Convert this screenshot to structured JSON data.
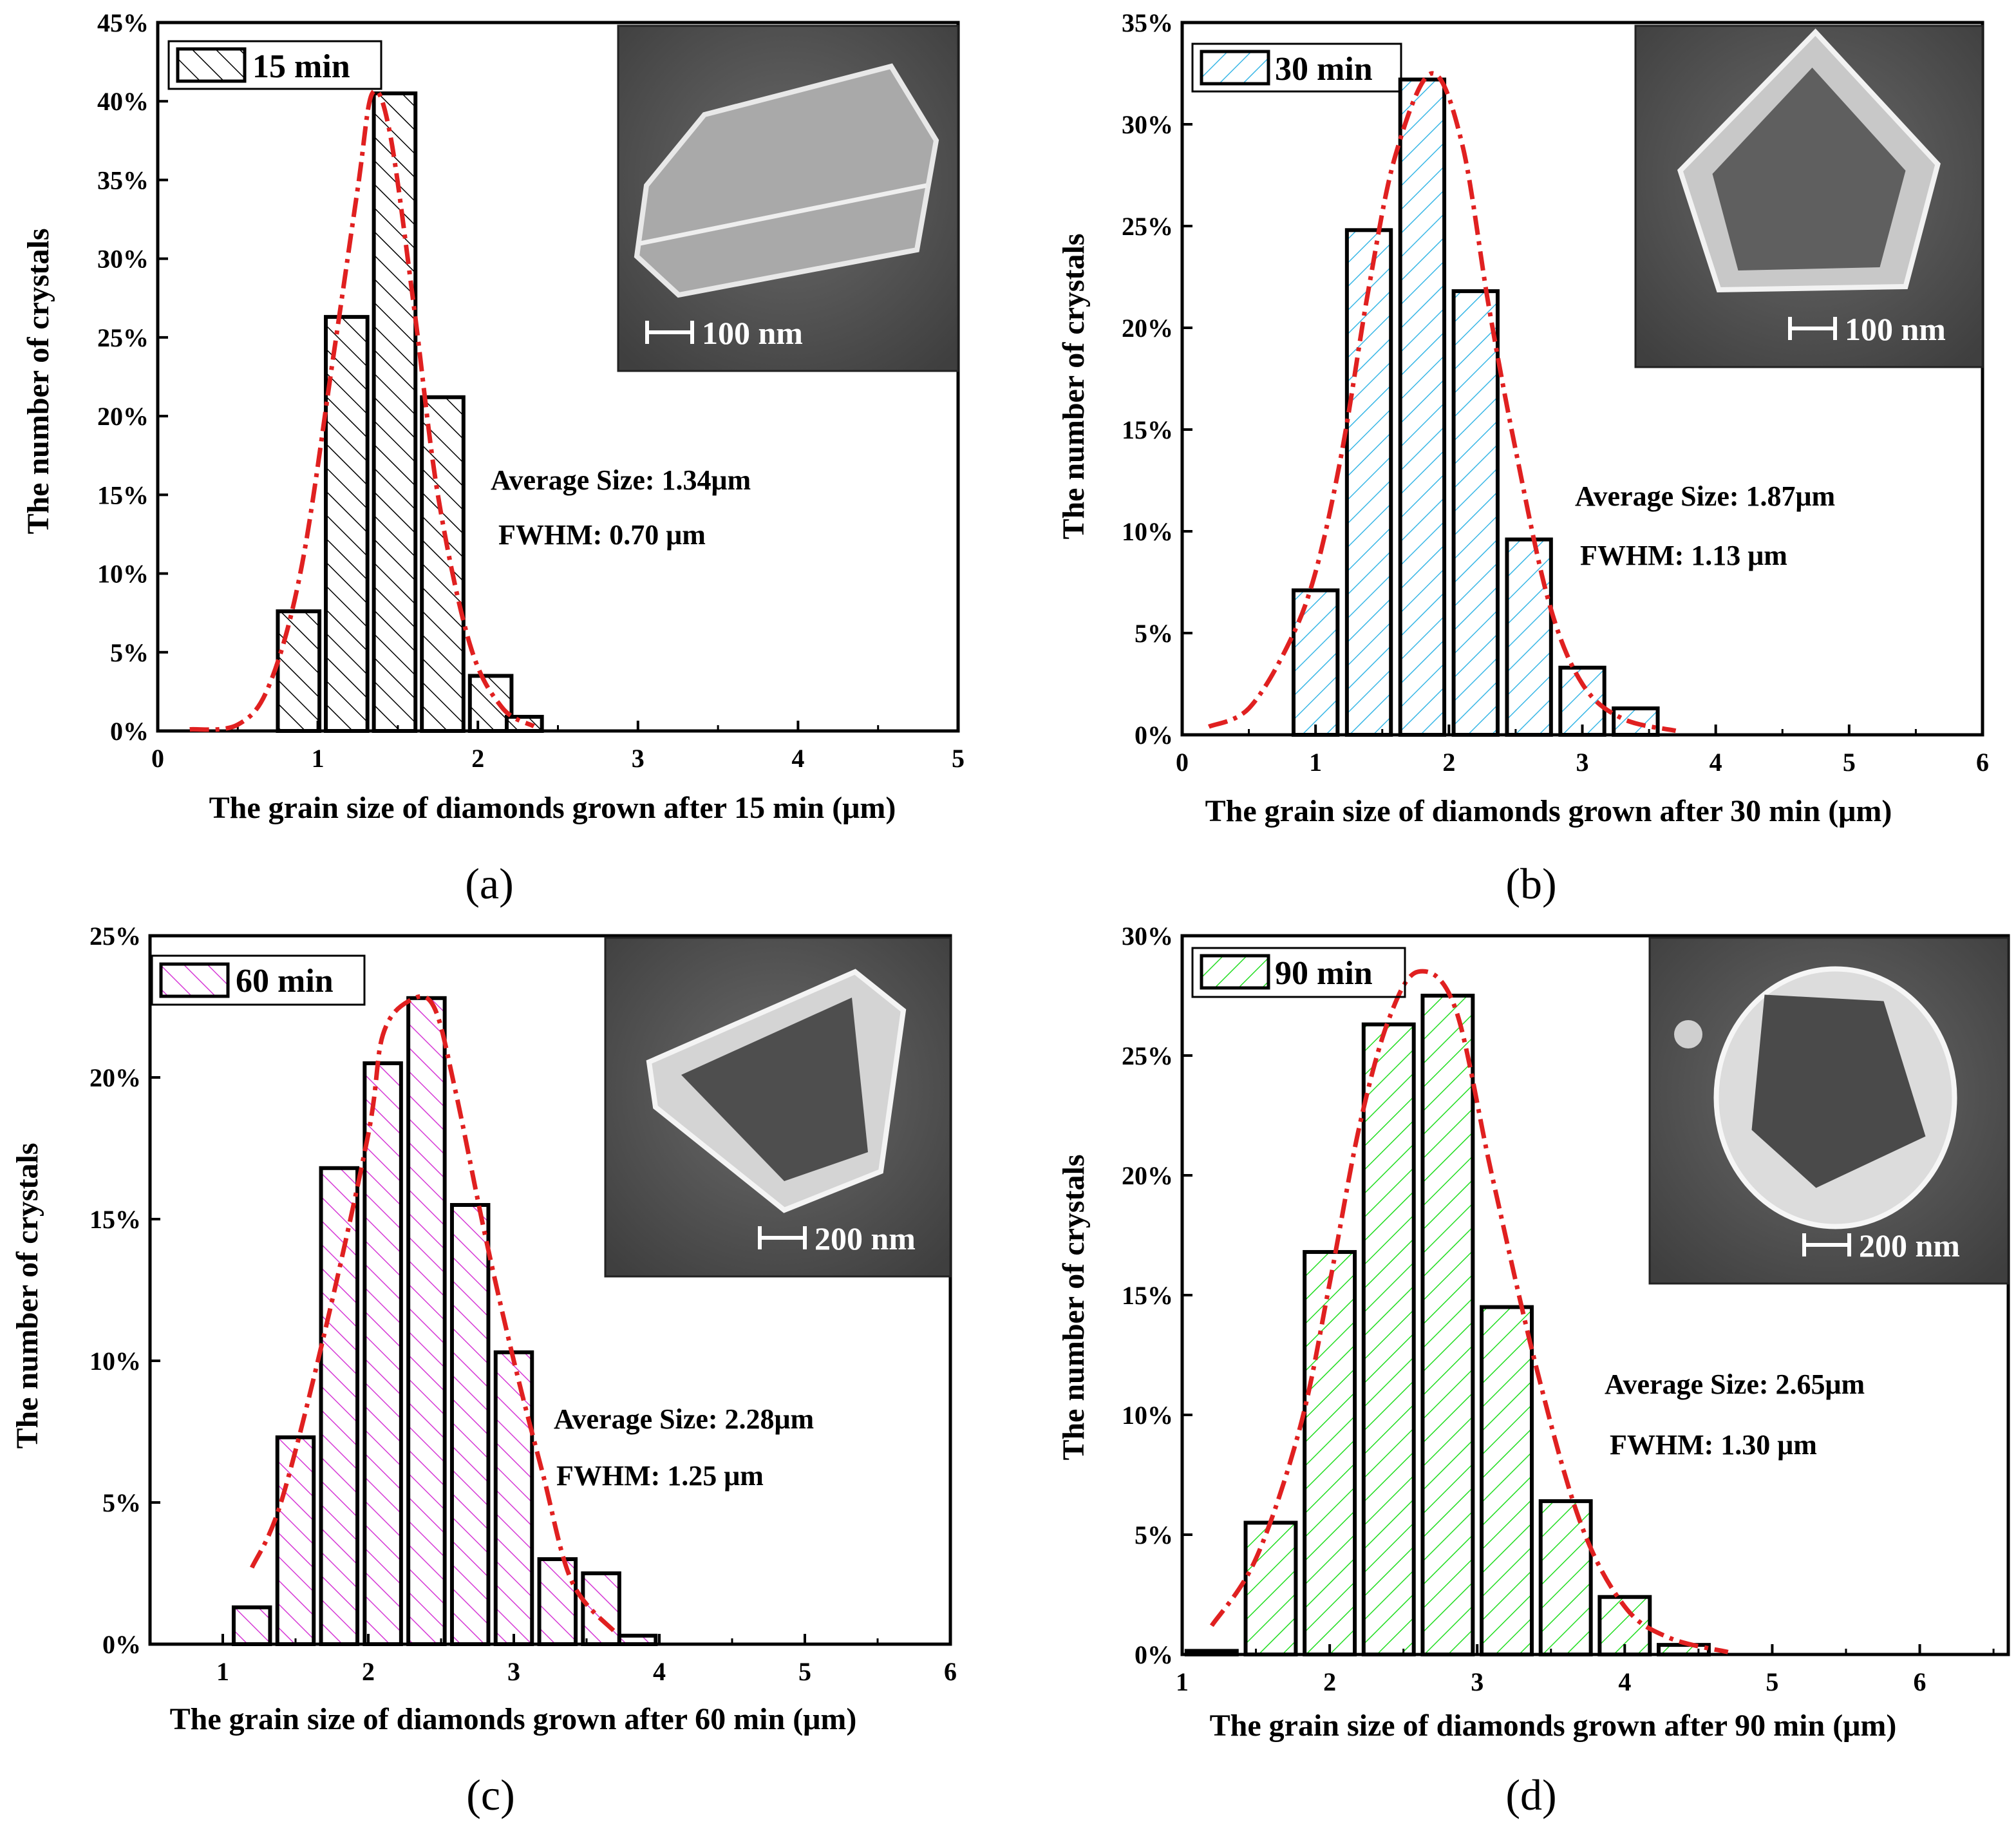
{
  "chart_data": [
    {
      "type": "bar",
      "panel_label": "(a)",
      "legend": "15 min",
      "hatch_color": "#000000",
      "xlabel": "The grain size of diamonds grown after 15 min (μm)",
      "ylabel": "The number of crystals",
      "xlim": [
        0,
        5
      ],
      "ylim": [
        0,
        45
      ],
      "xticks": [
        "0",
        "1",
        "2",
        "3",
        "4",
        "5"
      ],
      "yticks": [
        "0%",
        "5%",
        "10%",
        "15%",
        "20%",
        "25%",
        "30%",
        "35%",
        "40%",
        "45%"
      ],
      "bar_width": 0.26,
      "categories": [
        0.88,
        1.18,
        1.48,
        1.78,
        2.08
      ],
      "values": [
        7.6,
        26.3,
        40.5,
        21.2,
        3.5
      ],
      "extra_bars": [
        {
          "x": 2.29,
          "value": 0.9,
          "width": 0.22
        }
      ],
      "fit_curve": [
        [
          0.2,
          0.1
        ],
        [
          0.5,
          0.4
        ],
        [
          0.7,
          3
        ],
        [
          0.9,
          10.5
        ],
        [
          1.1,
          24
        ],
        [
          1.25,
          34.5
        ],
        [
          1.34,
          40.5
        ],
        [
          1.45,
          38
        ],
        [
          1.6,
          27
        ],
        [
          1.75,
          15
        ],
        [
          1.95,
          5.5
        ],
        [
          2.15,
          1.5
        ],
        [
          2.35,
          0.3
        ]
      ],
      "stats": {
        "average": "Average Size: 1.34μm",
        "fwhm": "FWHM: 0.70 μm"
      },
      "inset": {
        "scale_bar": "100 nm",
        "shape": "prism"
      }
    },
    {
      "type": "bar",
      "panel_label": "(b)",
      "legend": "30 min",
      "hatch_color": "#39b7e6",
      "xlabel": "The grain size of diamonds grown after 30 min (μm)",
      "ylabel": "The number of crystals",
      "xlim": [
        0,
        6
      ],
      "ylim": [
        0,
        35
      ],
      "xticks": [
        "0",
        "1",
        "2",
        "3",
        "4",
        "5",
        "6"
      ],
      "yticks": [
        "0%",
        "5%",
        "10%",
        "15%",
        "20%",
        "25%",
        "30%",
        "35%"
      ],
      "bar_width": 0.33,
      "categories": [
        1.0,
        1.4,
        1.8,
        2.2,
        2.6,
        3.0,
        3.4
      ],
      "values": [
        7.1,
        24.8,
        32.2,
        21.8,
        9.6,
        3.3,
        1.3
      ],
      "extra_bars": [],
      "fit_curve": [
        [
          0.2,
          0.4
        ],
        [
          0.5,
          1.3
        ],
        [
          0.8,
          4.5
        ],
        [
          1.0,
          8
        ],
        [
          1.2,
          14
        ],
        [
          1.4,
          22
        ],
        [
          1.6,
          28.5
        ],
        [
          1.87,
          32.5
        ],
        [
          2.1,
          29
        ],
        [
          2.3,
          21
        ],
        [
          2.5,
          14
        ],
        [
          2.75,
          6.5
        ],
        [
          3.0,
          2.5
        ],
        [
          3.3,
          0.8
        ],
        [
          3.7,
          0.2
        ]
      ],
      "stats": {
        "average": "Average Size: 1.87μm",
        "fwhm": "FWHM: 1.13 μm"
      },
      "inset": {
        "scale_bar": "100 nm",
        "shape": "tri-round"
      }
    },
    {
      "type": "bar",
      "panel_label": "(c)",
      "legend": "60 min",
      "hatch_color": "#d63ad6",
      "xlabel": "The grain size of diamonds grown after 60 min (μm)",
      "ylabel": "The number of crystals",
      "xlim": [
        0.5,
        6
      ],
      "ylim": [
        0,
        25
      ],
      "xticks": [
        "1",
        "2",
        "3",
        "4",
        "5",
        "6"
      ],
      "xtick_values": [
        1,
        2,
        3,
        4,
        5,
        6
      ],
      "yticks": [
        "0%",
        "5%",
        "10%",
        "15%",
        "20%",
        "25%"
      ],
      "bar_width": 0.25,
      "categories": [
        1.2,
        1.5,
        1.8,
        2.1,
        2.4,
        2.7,
        3.0,
        3.3,
        3.6,
        3.85
      ],
      "values": [
        1.3,
        7.3,
        16.8,
        20.5,
        22.8,
        15.5,
        10.3,
        3.0,
        2.5,
        0.3
      ],
      "fit_curve": [
        [
          1.2,
          2.7
        ],
        [
          1.4,
          5
        ],
        [
          1.7,
          11
        ],
        [
          2.0,
          18
        ],
        [
          2.1,
          21.5
        ],
        [
          2.28,
          22.7
        ],
        [
          2.45,
          22.5
        ],
        [
          2.6,
          19.5
        ],
        [
          2.8,
          14.5
        ],
        [
          3.0,
          10
        ],
        [
          3.2,
          6
        ],
        [
          3.4,
          2.2
        ],
        [
          3.7,
          0.4
        ]
      ],
      "stats": {
        "average": "Average Size: 2.28μm",
        "fwhm": "FWHM: 1.25 μm"
      },
      "inset": {
        "scale_bar": "200 nm",
        "shape": "triangle"
      }
    },
    {
      "type": "bar",
      "panel_label": "(d)",
      "legend": "90 min",
      "hatch_color": "#22dd22",
      "xlabel": "The grain size of diamonds grown after 90 min (μm)",
      "ylabel": "The number of crystals",
      "xlim": [
        1,
        6.6
      ],
      "ylim": [
        0,
        30
      ],
      "xticks": [
        "1",
        "2",
        "3",
        "4",
        "5",
        "6"
      ],
      "xtick_values": [
        1,
        2,
        3,
        4,
        5,
        6
      ],
      "yticks": [
        "0%",
        "5%",
        "10%",
        "15%",
        "20%",
        "25%",
        "30%"
      ],
      "bar_width": 0.34,
      "categories": [
        1.2,
        1.6,
        2.0,
        2.4,
        2.8,
        3.2,
        3.6,
        4.0,
        4.4
      ],
      "values": [
        0.15,
        5.5,
        16.8,
        26.3,
        27.5,
        14.5,
        6.4,
        2.4,
        0.4
      ],
      "fit_curve": [
        [
          1.2,
          1.2
        ],
        [
          1.5,
          4
        ],
        [
          1.8,
          9.5
        ],
        [
          2.0,
          15.5
        ],
        [
          2.2,
          22
        ],
        [
          2.4,
          26.5
        ],
        [
          2.6,
          28.5
        ],
        [
          2.85,
          27
        ],
        [
          3.1,
          20
        ],
        [
          3.4,
          12
        ],
        [
          3.7,
          5.5
        ],
        [
          4.0,
          2
        ],
        [
          4.3,
          0.7
        ],
        [
          4.7,
          0.1
        ]
      ],
      "stats": {
        "average": "Average Size: 2.65μm",
        "fwhm": "FWHM: 1.30 μm"
      },
      "inset": {
        "scale_bar": "200 nm",
        "shape": "round"
      }
    }
  ]
}
